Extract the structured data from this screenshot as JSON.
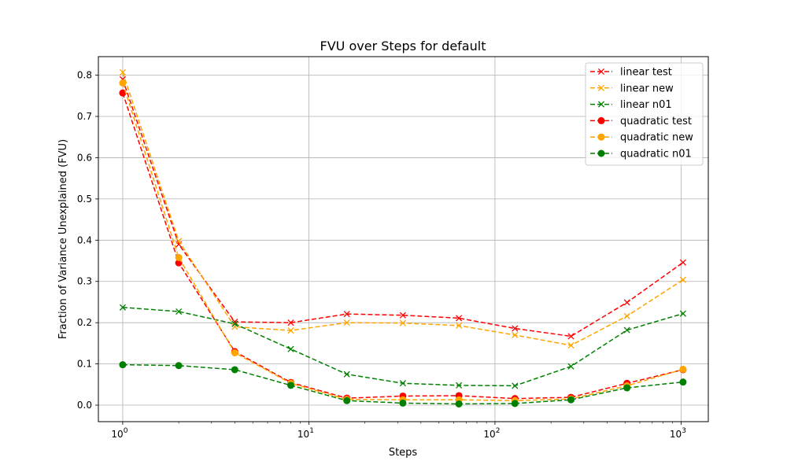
{
  "chart_data": {
    "type": "line",
    "title": "FVU over Steps for default",
    "xlabel": "Steps",
    "ylabel": "Fraction of Variance Unexplained (FVU)",
    "xscale": "log",
    "xlim": [
      0.74,
      1400
    ],
    "ylim": [
      -0.04,
      0.845
    ],
    "grid": true,
    "legend_position": "top-right",
    "x": [
      1,
      2,
      4,
      8,
      16,
      32,
      64,
      128,
      256,
      512,
      1024
    ],
    "x_ticks": [
      {
        "value": 1,
        "base": "10",
        "exp": "0"
      },
      {
        "value": 10,
        "base": "10",
        "exp": "1"
      },
      {
        "value": 100,
        "base": "10",
        "exp": "2"
      },
      {
        "value": 1000,
        "base": "10",
        "exp": "3"
      }
    ],
    "y_ticks": [
      "0.0",
      "0.1",
      "0.2",
      "0.3",
      "0.4",
      "0.5",
      "0.6",
      "0.7",
      "0.8"
    ],
    "series": [
      {
        "name": "linear test",
        "color": "#ff0000",
        "marker": "x",
        "values": [
          0.79,
          0.39,
          0.202,
          0.2,
          0.221,
          0.218,
          0.211,
          0.186,
          0.167,
          0.249,
          0.346
        ]
      },
      {
        "name": "linear new",
        "color": "#ffa500",
        "marker": "x",
        "values": [
          0.807,
          0.398,
          0.19,
          0.181,
          0.2,
          0.199,
          0.193,
          0.17,
          0.145,
          0.216,
          0.304
        ]
      },
      {
        "name": "linear n01",
        "color": "#008000",
        "marker": "x",
        "values": [
          0.237,
          0.227,
          0.197,
          0.136,
          0.075,
          0.053,
          0.048,
          0.047,
          0.094,
          0.182,
          0.222
        ]
      },
      {
        "name": "quadratic test",
        "color": "#ff0000",
        "marker": "o",
        "values": [
          0.757,
          0.345,
          0.13,
          0.055,
          0.017,
          0.022,
          0.023,
          0.016,
          0.019,
          0.053,
          0.086
        ]
      },
      {
        "name": "quadratic new",
        "color": "#ffa500",
        "marker": "o",
        "values": [
          0.781,
          0.358,
          0.127,
          0.053,
          0.014,
          0.013,
          0.013,
          0.011,
          0.015,
          0.047,
          0.087
        ]
      },
      {
        "name": "quadratic n01",
        "color": "#008000",
        "marker": "o",
        "values": [
          0.098,
          0.096,
          0.086,
          0.048,
          0.011,
          0.005,
          0.003,
          0.004,
          0.013,
          0.042,
          0.056
        ]
      }
    ]
  }
}
